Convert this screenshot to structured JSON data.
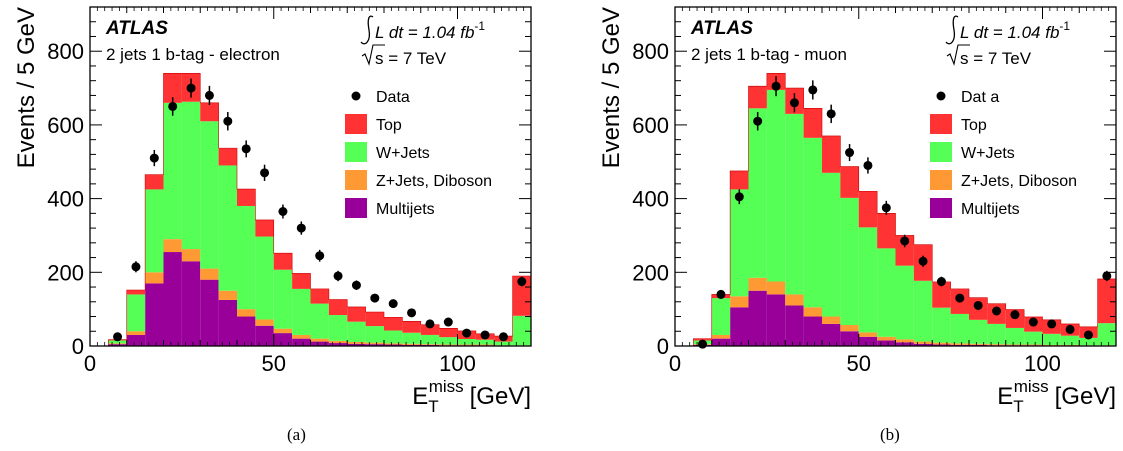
{
  "chart_data": [
    {
      "type": "bar",
      "caption": "(a)",
      "atlas_label": "ATLAS",
      "channel_label": "2 jets 1 b-tag - electron",
      "lumi_label": "L dt = 1.04 fb",
      "lumi_exponent": "-1",
      "sqrt_label": "s = 7 TeV",
      "ylabel": "Events / 5 GeV",
      "xlabel_main": "E",
      "xlabel_sub": "T",
      "xlabel_sup": "miss",
      "xlabel_unit": "[GeV]",
      "xlim": [
        0,
        120
      ],
      "ylim": [
        0,
        920
      ],
      "xticks": [
        0,
        50,
        100
      ],
      "yticks": [
        0,
        200,
        400,
        600,
        800
      ],
      "bin_edges": [
        5,
        10,
        15,
        20,
        25,
        30,
        35,
        40,
        45,
        50,
        55,
        60,
        65,
        70,
        75,
        80,
        85,
        90,
        95,
        100,
        105,
        110,
        115,
        120
      ],
      "legend": [
        {
          "label": "Data",
          "kind": "marker",
          "color": "#000000"
        },
        {
          "label": "Top",
          "kind": "box",
          "color": "#ff3333"
        },
        {
          "label": "W+Jets",
          "kind": "box",
          "color": "#55ff55"
        },
        {
          "label": "Z+Jets, Diboson",
          "kind": "box",
          "color": "#ff9933"
        },
        {
          "label": "Multijets",
          "kind": "box",
          "color": "#990099"
        }
      ],
      "series": [
        {
          "name": "Multijets",
          "color": "#990099",
          "values": [
            5,
            30,
            170,
            255,
            230,
            180,
            125,
            80,
            55,
            35,
            20,
            12,
            8,
            6,
            5,
            4,
            3,
            3,
            2,
            2,
            2,
            1,
            1
          ]
        },
        {
          "name": "Z+Jets, Diboson",
          "color": "#ff9933",
          "values": [
            2,
            10,
            30,
            35,
            33,
            30,
            25,
            20,
            17,
            12,
            10,
            8,
            6,
            5,
            4,
            3,
            3,
            2,
            2,
            2,
            2,
            1,
            1
          ]
        },
        {
          "name": "W+Jets",
          "color": "#55ff55",
          "values": [
            8,
            100,
            225,
            370,
            400,
            400,
            340,
            280,
            225,
            160,
            125,
            95,
            70,
            55,
            45,
            35,
            30,
            25,
            20,
            15,
            13,
            10,
            80
          ]
        },
        {
          "name": "Top",
          "color": "#ff3333",
          "values": [
            2,
            12,
            40,
            80,
            77,
            50,
            47,
            46,
            45,
            45,
            42,
            40,
            42,
            40,
            38,
            36,
            31,
            28,
            24,
            22,
            16,
            15,
            108
          ]
        }
      ],
      "data_points": {
        "x": [
          7.5,
          12.5,
          17.5,
          22.5,
          27.5,
          32.5,
          37.5,
          42.5,
          47.5,
          52.5,
          57.5,
          62.5,
          67.5,
          72.5,
          77.5,
          82.5,
          87.5,
          92.5,
          97.5,
          102.5,
          107.5,
          112.5,
          117.5
        ],
        "y": [
          25,
          215,
          510,
          650,
          700,
          680,
          610,
          535,
          470,
          365,
          320,
          245,
          190,
          165,
          130,
          115,
          90,
          60,
          65,
          35,
          30,
          25,
          175
        ],
        "err": [
          5,
          15,
          22,
          25,
          26,
          26,
          25,
          23,
          22,
          19,
          18,
          16,
          14,
          13,
          11,
          11,
          9,
          8,
          8,
          6,
          5,
          5,
          13
        ]
      }
    },
    {
      "type": "bar",
      "caption": "(b)",
      "atlas_label": "ATLAS",
      "channel_label": "2 jets 1 b-tag - muon",
      "lumi_label": "L dt = 1.04 fb",
      "lumi_exponent": "-1",
      "sqrt_label": "s = 7 TeV",
      "ylabel": "Events / 5 GeV",
      "xlabel_main": "E",
      "xlabel_sub": "T",
      "xlabel_sup": "miss",
      "xlabel_unit": "[GeV]",
      "xlim": [
        0,
        120
      ],
      "ylim": [
        0,
        920
      ],
      "xticks": [
        0,
        50,
        100
      ],
      "yticks": [
        0,
        200,
        400,
        600,
        800
      ],
      "bin_edges": [
        5,
        10,
        15,
        20,
        25,
        30,
        35,
        40,
        45,
        50,
        55,
        60,
        65,
        70,
        75,
        80,
        85,
        90,
        95,
        100,
        105,
        110,
        115,
        120
      ],
      "legend": [
        {
          "label": "Dat a",
          "kind": "marker",
          "color": "#000000"
        },
        {
          "label": "Top",
          "kind": "box",
          "color": "#ff3333"
        },
        {
          "label": "W+Jets",
          "kind": "box",
          "color": "#55ff55"
        },
        {
          "label": "Z+Jets, Diboson",
          "kind": "box",
          "color": "#ff9933"
        },
        {
          "label": "Multijets",
          "kind": "box",
          "color": "#990099"
        }
      ],
      "series": [
        {
          "name": "Multijets",
          "color": "#990099",
          "values": [
            3,
            20,
            105,
            150,
            140,
            110,
            80,
            60,
            40,
            25,
            15,
            10,
            6,
            4,
            3,
            3,
            2,
            2,
            2,
            1,
            1,
            1,
            1
          ]
        },
        {
          "name": "Z+Jets, Diboson",
          "color": "#ff9933",
          "values": [
            2,
            10,
            30,
            35,
            35,
            30,
            25,
            20,
            17,
            12,
            10,
            8,
            6,
            5,
            4,
            3,
            3,
            2,
            2,
            2,
            2,
            1,
            1
          ]
        },
        {
          "name": "W+Jets",
          "color": "#55ff55",
          "values": [
            10,
            100,
            290,
            460,
            520,
            490,
            460,
            390,
            345,
            285,
            240,
            200,
            165,
            95,
            80,
            65,
            55,
            45,
            35,
            30,
            25,
            20,
            60
          ]
        },
        {
          "name": "Top",
          "color": "#ff3333",
          "values": [
            5,
            10,
            50,
            60,
            45,
            70,
            80,
            100,
            85,
            98,
            95,
            82,
            98,
            70,
            68,
            60,
            55,
            50,
            40,
            38,
            32,
            30,
            120
          ]
        }
      ],
      "data_points": {
        "x": [
          7.5,
          12.5,
          17.5,
          22.5,
          27.5,
          32.5,
          37.5,
          42.5,
          47.5,
          52.5,
          57.5,
          62.5,
          67.5,
          72.5,
          77.5,
          82.5,
          87.5,
          92.5,
          97.5,
          102.5,
          107.5,
          112.5,
          117.5
        ],
        "y": [
          5,
          140,
          405,
          610,
          705,
          660,
          695,
          630,
          525,
          490,
          375,
          285,
          230,
          175,
          130,
          110,
          95,
          85,
          65,
          60,
          45,
          30,
          190
        ],
        "err": [
          2,
          12,
          20,
          25,
          27,
          26,
          26,
          25,
          23,
          22,
          19,
          17,
          15,
          13,
          11,
          11,
          10,
          9,
          8,
          8,
          7,
          5,
          14
        ]
      }
    }
  ]
}
